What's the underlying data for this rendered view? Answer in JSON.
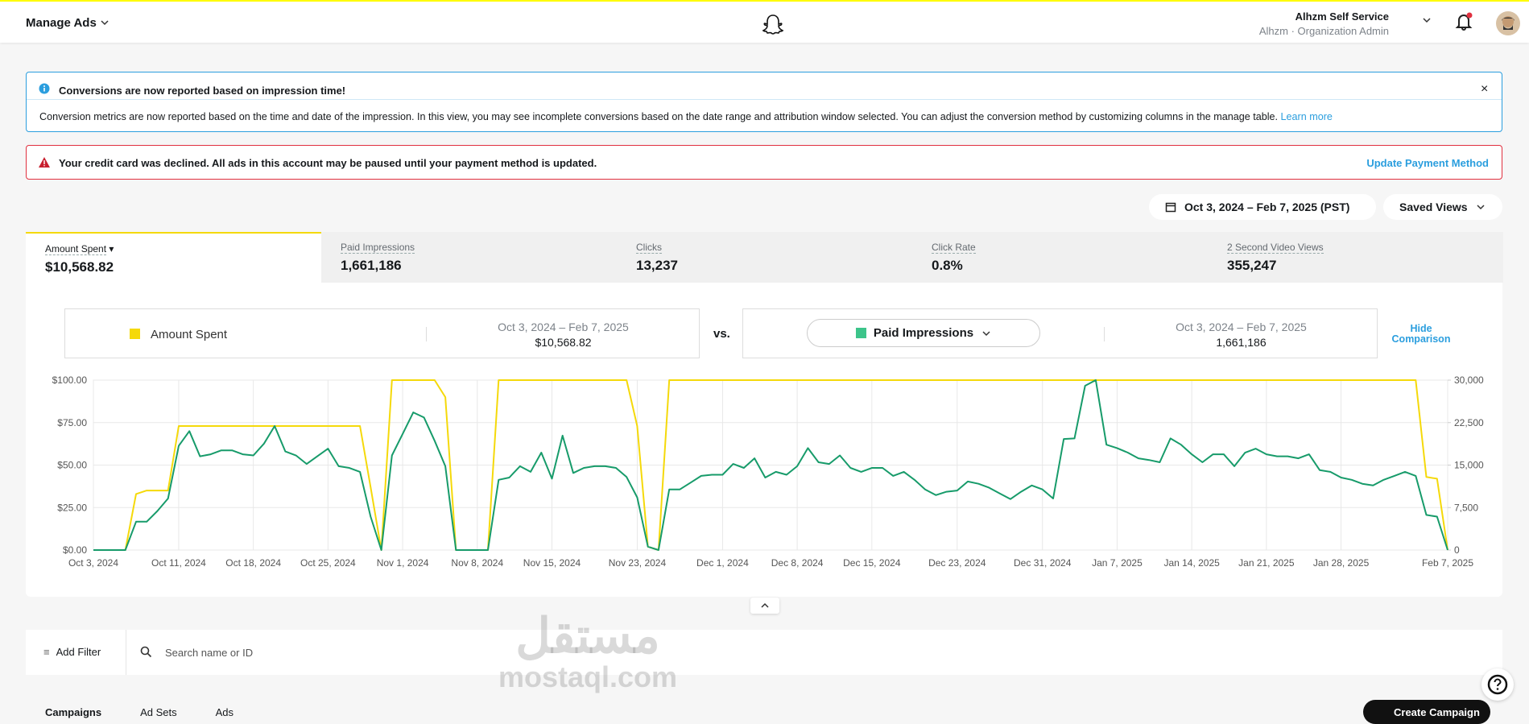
{
  "header": {
    "title": "Manage Ads",
    "account": "Alhzm Self Service",
    "role": "Alhzm · Organization Admin"
  },
  "notices": {
    "info_title": "Conversions are now reported based on impression time!",
    "info_body": "Conversion metrics are now reported based on the time and date of the impression. In this view, you may see incomplete conversions based on the date range and attribution window selected. You can adjust the conversion method by customizing columns in the manage table.",
    "info_link": "Learn more",
    "alert": "Your credit card was declined. All ads in this account may be paused until your payment method is updated.",
    "alert_action": "Update Payment Method"
  },
  "date_range": "Oct 3, 2024 – Feb 7, 2025 (PST)",
  "saved_views": "Saved Views",
  "metrics": [
    {
      "label": "Amount Spent",
      "value": "$10,568.82"
    },
    {
      "label": "Paid Impressions",
      "value": "1,661,186"
    },
    {
      "label": "Clicks",
      "value": "13,237"
    },
    {
      "label": "Click Rate",
      "value": "0.8%"
    },
    {
      "label": "2 Second Video Views",
      "value": "355,247"
    }
  ],
  "comparison": {
    "range_a": "Oct 3, 2024 – Feb 7, 2025",
    "total_a": "$10,568.82",
    "vs": "vs.",
    "range_b": "Oct 3, 2024 – Feb 7, 2025",
    "total_b": "1,661,186",
    "hide": "Hide Comparison"
  },
  "chart_data": {
    "type": "line",
    "x": [
      "2024-10-03",
      "2024-10-04",
      "2024-10-05",
      "2024-10-06",
      "2024-10-07",
      "2024-10-08",
      "2024-10-09",
      "2024-10-10",
      "2024-10-11",
      "2024-10-12",
      "2024-10-13",
      "2024-10-14",
      "2024-10-15",
      "2024-10-16",
      "2024-10-17",
      "2024-10-18",
      "2024-10-19",
      "2024-10-20",
      "2024-10-21",
      "2024-10-22",
      "2024-10-23",
      "2024-10-24",
      "2024-10-25",
      "2024-10-26",
      "2024-10-27",
      "2024-10-28",
      "2024-10-29",
      "2024-10-30",
      "2024-10-31",
      "2024-11-01",
      "2024-11-02",
      "2024-11-03",
      "2024-11-04",
      "2024-11-05",
      "2024-11-06",
      "2024-11-07",
      "2024-11-08",
      "2024-11-09",
      "2024-11-10",
      "2024-11-11",
      "2024-11-12",
      "2024-11-13",
      "2024-11-14",
      "2024-11-15",
      "2024-11-16",
      "2024-11-17",
      "2024-11-18",
      "2024-11-19",
      "2024-11-20",
      "2024-11-21",
      "2024-11-22",
      "2024-11-23",
      "2024-11-24",
      "2024-11-25",
      "2024-11-26",
      "2024-11-27",
      "2024-11-28",
      "2024-11-29",
      "2024-11-30",
      "2024-12-01",
      "2024-12-02",
      "2024-12-03",
      "2024-12-04",
      "2024-12-05",
      "2024-12-06",
      "2024-12-07",
      "2024-12-08",
      "2024-12-09",
      "2024-12-10",
      "2024-12-11",
      "2024-12-12",
      "2024-12-13",
      "2024-12-14",
      "2024-12-15",
      "2024-12-16",
      "2024-12-17",
      "2024-12-18",
      "2024-12-19",
      "2024-12-20",
      "2024-12-21",
      "2024-12-22",
      "2024-12-23",
      "2024-12-24",
      "2024-12-25",
      "2024-12-26",
      "2024-12-27",
      "2024-12-28",
      "2024-12-29",
      "2024-12-30",
      "2024-12-31",
      "2025-01-01",
      "2025-01-02",
      "2025-01-03",
      "2025-01-04",
      "2025-01-05",
      "2025-01-06",
      "2025-01-07",
      "2025-01-08",
      "2025-01-09",
      "2025-01-10",
      "2025-01-11",
      "2025-01-12",
      "2025-01-13",
      "2025-01-14",
      "2025-01-15",
      "2025-01-16",
      "2025-01-17",
      "2025-01-18",
      "2025-01-19",
      "2025-01-20",
      "2025-01-21",
      "2025-01-22",
      "2025-01-23",
      "2025-01-24",
      "2025-01-25",
      "2025-01-26",
      "2025-01-27",
      "2025-01-28",
      "2025-01-29",
      "2025-01-30",
      "2025-01-31",
      "2025-02-01",
      "2025-02-02",
      "2025-02-03",
      "2025-02-04",
      "2025-02-05",
      "2025-02-06",
      "2025-02-07"
    ],
    "series": [
      {
        "name": "Amount Spent",
        "color": "#f5d90a",
        "axis": "y",
        "values": [
          0,
          0,
          0,
          0,
          33,
          35,
          35,
          35,
          73,
          73,
          73,
          73,
          73,
          73,
          73,
          73,
          73,
          73,
          73,
          73,
          73,
          73,
          73,
          73,
          73,
          73,
          37,
          0,
          100,
          100,
          100,
          100,
          100,
          90,
          0,
          0,
          0,
          0,
          100,
          100,
          100,
          100,
          100,
          100,
          100,
          100,
          100,
          100,
          100,
          100,
          100,
          73,
          2,
          0,
          100,
          100,
          100,
          100,
          100,
          100,
          100,
          100,
          100,
          100,
          100,
          100,
          100,
          100,
          100,
          100,
          100,
          100,
          100,
          100,
          100,
          100,
          100,
          100,
          100,
          100,
          100,
          100,
          100,
          100,
          100,
          100,
          100,
          100,
          100,
          100,
          100,
          100,
          100,
          100,
          100,
          100,
          100,
          100,
          100,
          100,
          100,
          100,
          100,
          100,
          100,
          100,
          100,
          100,
          100,
          100,
          100,
          100,
          100,
          100,
          100,
          100,
          100,
          100,
          100,
          100,
          100,
          100,
          100,
          100,
          100,
          43,
          42,
          0
        ]
      },
      {
        "name": "Paid Impressions",
        "color": "#179b6a",
        "axis": "y2",
        "values": [
          0,
          0,
          0,
          0,
          5000,
          5000,
          6900,
          9100,
          18400,
          21000,
          16550,
          16900,
          17600,
          17600,
          16900,
          16700,
          18800,
          21900,
          17400,
          16700,
          15200,
          16550,
          17900,
          14800,
          14500,
          13800,
          5900,
          0,
          16700,
          20500,
          24300,
          23400,
          19300,
          14800,
          0,
          0,
          0,
          0,
          12400,
          12800,
          14800,
          13800,
          17200,
          12600,
          20200,
          13600,
          14500,
          14800,
          14800,
          14500,
          12900,
          9300,
          600,
          0,
          10700,
          10700,
          11900,
          13100,
          13300,
          13300,
          15200,
          14500,
          16200,
          12800,
          13800,
          13300,
          14800,
          18000,
          15500,
          15200,
          16700,
          14500,
          13800,
          14500,
          14500,
          13100,
          13800,
          12400,
          10700,
          9700,
          10300,
          10500,
          12100,
          11700,
          11000,
          10000,
          9000,
          10300,
          11400,
          10700,
          9100,
          19600,
          19700,
          29000,
          30000,
          18600,
          18000,
          17200,
          16200,
          15900,
          15500,
          19700,
          18600,
          16900,
          15500,
          16900,
          16900,
          14800,
          17200,
          17900,
          16900,
          16550,
          16550,
          16200,
          16900,
          14100,
          13800,
          12800,
          12400,
          11700,
          11400,
          12400,
          13100,
          13800,
          13100,
          6200,
          5900,
          0
        ]
      }
    ],
    "xlim": [
      "2024-10-03",
      "2025-02-07"
    ],
    "xticks": [
      {
        "value": "2024-10-03",
        "label": "Oct 3, 2024"
      },
      {
        "value": "2024-10-11",
        "label": "Oct 11, 2024"
      },
      {
        "value": "2024-10-18",
        "label": "Oct 18, 2024"
      },
      {
        "value": "2024-10-25",
        "label": "Oct 25, 2024"
      },
      {
        "value": "2024-11-01",
        "label": "Nov 1, 2024"
      },
      {
        "value": "2024-11-08",
        "label": "Nov 8, 2024"
      },
      {
        "value": "2024-11-15",
        "label": "Nov 15, 2024"
      },
      {
        "value": "2024-11-23",
        "label": "Nov 23, 2024"
      },
      {
        "value": "2024-12-01",
        "label": "Dec 1, 2024"
      },
      {
        "value": "2024-12-08",
        "label": "Dec 8, 2024"
      },
      {
        "value": "2024-12-15",
        "label": "Dec 15, 2024"
      },
      {
        "value": "2024-12-23",
        "label": "Dec 23, 2024"
      },
      {
        "value": "2024-12-31",
        "label": "Dec 31, 2024"
      },
      {
        "value": "2025-01-07",
        "label": "Jan 7, 2025"
      },
      {
        "value": "2025-01-14",
        "label": "Jan 14, 2025"
      },
      {
        "value": "2025-01-21",
        "label": "Jan 21, 2025"
      },
      {
        "value": "2025-01-28",
        "label": "Jan 28, 2025"
      },
      {
        "value": "2025-02-07",
        "label": "Feb 7, 2025"
      }
    ],
    "ylim": [
      0,
      100
    ],
    "yticks": [
      {
        "value": 0,
        "label": "$0.00"
      },
      {
        "value": 25,
        "label": "$25.00"
      },
      {
        "value": 50,
        "label": "$50.00"
      },
      {
        "value": 75,
        "label": "$75.00"
      },
      {
        "value": 100,
        "label": "$100.00"
      }
    ],
    "y2lim": [
      0,
      30000
    ],
    "y2ticks": [
      0,
      {
        "value": 7500,
        "label": "7,500"
      },
      {
        "value": 15000,
        "label": "15,000"
      },
      {
        "value": 22500,
        "label": "22,500"
      },
      {
        "value": 30000,
        "label": "30,000"
      }
    ],
    "grid": true
  },
  "filter": {
    "add": "Add Filter",
    "search": "Search name or ID"
  },
  "tabs": [
    "Campaigns",
    "Ad Sets",
    "Ads"
  ],
  "create": "Create Campaign",
  "watermark": [
    "مستقل",
    "mostaql.com"
  ]
}
